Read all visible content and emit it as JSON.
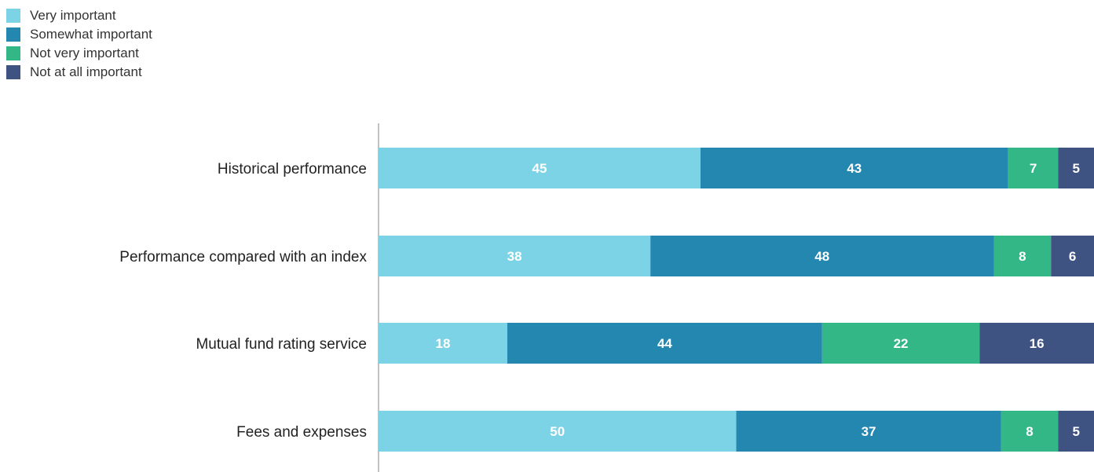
{
  "chart_data": {
    "type": "bar",
    "orientation": "horizontal",
    "stacked": true,
    "categories": [
      "Historical performance",
      "Performance compared with an index",
      "Mutual fund rating service",
      "Fees and expenses"
    ],
    "series": [
      {
        "name": "Very important",
        "color": "#7dd3e6",
        "values": [
          45,
          38,
          18,
          50
        ]
      },
      {
        "name": "Somewhat important",
        "color": "#2487b0",
        "values": [
          43,
          48,
          44,
          37
        ]
      },
      {
        "name": "Not very important",
        "color": "#33b787",
        "values": [
          7,
          8,
          22,
          8
        ]
      },
      {
        "name": "Not at all important",
        "color": "#3f5383",
        "values": [
          5,
          6,
          16,
          5
        ]
      }
    ],
    "xlim": [
      0,
      100
    ],
    "legend_position": "top-left",
    "grid": false
  }
}
